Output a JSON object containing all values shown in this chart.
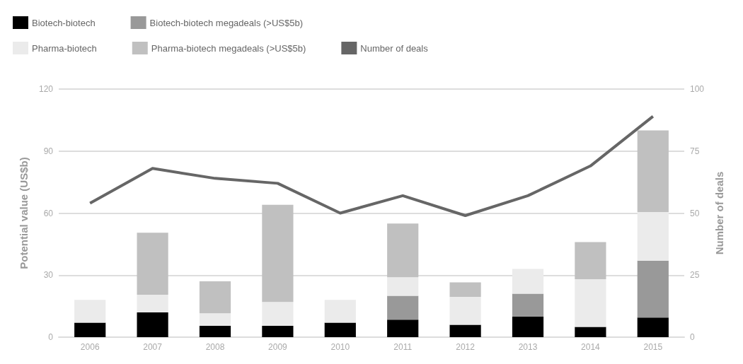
{
  "chart_data": {
    "type": "bar",
    "stacked": true,
    "ylabel": "Potential value (US$b)",
    "y2label": "Number of deals",
    "categories": [
      "2006",
      "2007",
      "2008",
      "2009",
      "2010",
      "2011",
      "2012",
      "2013",
      "2014",
      "2015"
    ],
    "series": [
      {
        "name": "Biotech-biotech",
        "color": "#000000",
        "values": [
          7,
          12,
          5.5,
          5.5,
          7,
          8.5,
          6,
          10,
          5,
          9.5
        ]
      },
      {
        "name": "Biotech-biotech megadeals (>US$5b)",
        "color": "#999999",
        "values": [
          0,
          0,
          0,
          0,
          0,
          11.5,
          0,
          11,
          0,
          27.5
        ]
      },
      {
        "name": "Pharma-biotech",
        "color": "#ebebeb",
        "values": [
          11,
          8.5,
          6,
          11.5,
          11,
          9,
          13.5,
          12,
          23,
          23.5
        ]
      },
      {
        "name": "Pharma-biotech megadeals (>US$5b)",
        "color": "#c0c0c0",
        "values": [
          0,
          30,
          15.5,
          47,
          0,
          26,
          7,
          0,
          18,
          39.5
        ]
      },
      {
        "name": "Number of deals",
        "type": "line",
        "axis": "y2",
        "color": "#666666",
        "values": [
          54,
          68,
          64,
          62,
          50,
          57,
          49,
          57,
          69,
          89
        ]
      }
    ],
    "ylim": [
      0,
      120
    ],
    "yticks": [
      0,
      30,
      60,
      90,
      120
    ],
    "y2lim": [
      0,
      100
    ],
    "y2ticks": [
      0,
      25,
      50,
      75,
      100
    ],
    "grid": "y",
    "legend": "top left",
    "marker": "none",
    "line_style": "solid"
  }
}
